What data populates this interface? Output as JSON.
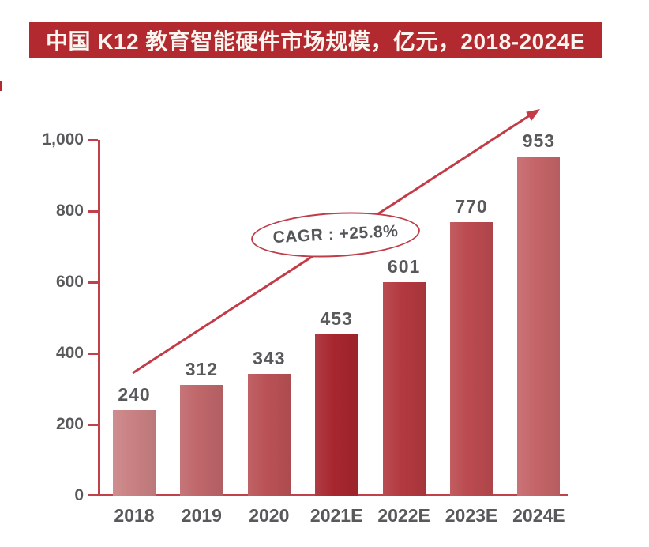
{
  "title": {
    "text": "中国 K12 教育智能硬件市场规模，亿元，2018-2024E",
    "bg_color": "#b2292f",
    "text_color": "#faf5ef"
  },
  "annotation": {
    "text": "CAGR :  +25.8%",
    "border_color": "#bf3c49",
    "text_color": "#55565a",
    "fill": "#ffffff"
  },
  "decorations": {
    "left_edge_mark_color": "#b2292f"
  },
  "chart_data": {
    "type": "bar",
    "title": "中国 K12 教育智能硬件市场规模，亿元，2018-2024E",
    "unit": "亿元",
    "categories": [
      "2018",
      "2019",
      "2020",
      "2021E",
      "2022E",
      "2023E",
      "2024E"
    ],
    "values": [
      240,
      312,
      343,
      453,
      601,
      770,
      953
    ],
    "bar_colors": [
      "#c98183",
      "#bf666a",
      "#b95155",
      "#a7262e",
      "#b2393f",
      "#ba4a4f",
      "#c46468"
    ],
    "xlabel": "",
    "ylabel": "",
    "ylim": [
      0,
      1000
    ],
    "yticks": [
      0,
      200,
      400,
      600,
      800,
      1000
    ],
    "ytick_labels": [
      "0",
      "200",
      "400",
      "600",
      "800",
      "1,000"
    ],
    "grid": false,
    "legend": "none",
    "cagr": "+25.8%",
    "axis_color": "#c1414b",
    "arrow_color": "#c23b46",
    "label_color": "#58595b"
  }
}
